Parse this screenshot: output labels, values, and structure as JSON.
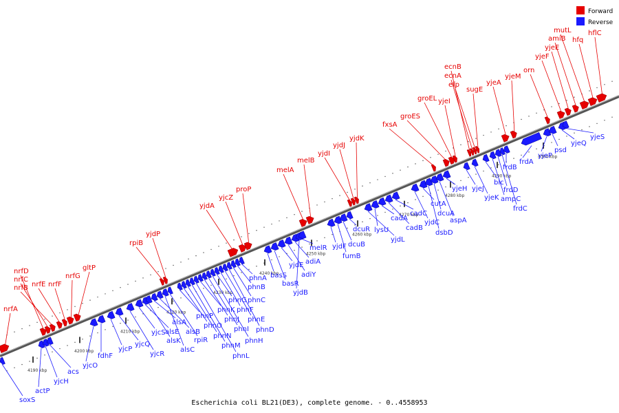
{
  "title": "Escherichia coli BL21(DE3), complete genome. - 0..4558953",
  "legend": [
    {
      "label": "Forward",
      "color": "#e60000"
    },
    {
      "label": "Reverse",
      "color": "#1a1aff"
    }
  ],
  "colors": {
    "forward": "#e60000",
    "reverse": "#1a1aff",
    "backbone": "#777777"
  },
  "scale_ticks": [
    "4190 kbp",
    "4200 kbp",
    "4210 kbp",
    "4220 kbp",
    "4230 kbp",
    "4240 kbp",
    "4250 kbp",
    "4260 kbp",
    "4270 kbp",
    "4280 kbp",
    "4290 kbp",
    "4300 kbp"
  ],
  "forward_labels": [
    "nrfA",
    "nrfD",
    "nrfC",
    "nrfB",
    "nrfE",
    "nrfF",
    "nrfG",
    "gltP",
    "rpiB",
    "yjdP",
    "yjdA",
    "yjcZ",
    "proP",
    "melA",
    "melB",
    "yjdI",
    "yjdJ",
    "yjdK",
    "fxsA",
    "groES",
    "groEL",
    "yjeI",
    "ecnB",
    "ecnA",
    "efp",
    "sugE",
    "yjeA",
    "yjeM",
    "orn",
    "yjeF",
    "yjeE",
    "amiB",
    "mutL",
    "hfq",
    "hflC"
  ],
  "reverse_labels": [
    "soxS",
    "actP",
    "yjcH",
    "acs",
    "yjcO",
    "fdhF",
    "yjcP",
    "yjcQ",
    "yjcR",
    "yjcS",
    "alsE",
    "alsK",
    "alsA",
    "alsB",
    "alsC",
    "rpiR",
    "phnP",
    "phnO",
    "phnN",
    "phnM",
    "phnL",
    "phnK",
    "phnJ",
    "phnI",
    "phnH",
    "phnG",
    "phnF",
    "phnE",
    "phnD",
    "phnC",
    "phnB",
    "phnA",
    "basS",
    "basR",
    "yjdE",
    "adiY",
    "adiA",
    "yjdB",
    "melR",
    "yjdF",
    "fumB",
    "dcuB",
    "dcuR",
    "yjdL",
    "lysU",
    "cadA",
    "cadB",
    "cadC",
    "yjdC",
    "cutA",
    "dsbD",
    "dcuA",
    "aspA",
    "yjeH",
    "yjeJ",
    "yjeK",
    "blc",
    "ampC",
    "frdD",
    "frdC",
    "frdB",
    "frdA",
    "yjeP",
    "psd",
    "yjeQ",
    "yjeS"
  ]
}
